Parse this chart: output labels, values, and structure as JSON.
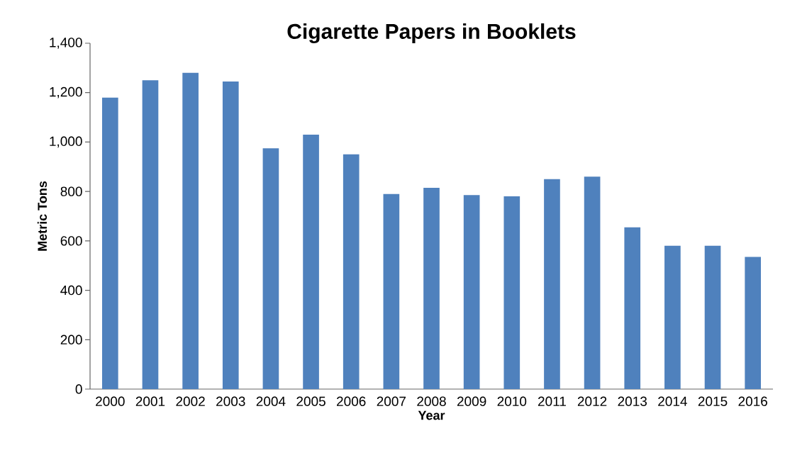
{
  "chart_data": {
    "type": "bar",
    "title": "Cigarette Papers in Booklets",
    "xlabel": "Year",
    "ylabel": "Metric Tons",
    "categories": [
      "2000",
      "2001",
      "2002",
      "2003",
      "2004",
      "2005",
      "2006",
      "2007",
      "2008",
      "2009",
      "2010",
      "2011",
      "2012",
      "2013",
      "2014",
      "2015",
      "2016"
    ],
    "values": [
      1180,
      1250,
      1280,
      1245,
      975,
      1030,
      950,
      790,
      815,
      785,
      780,
      850,
      860,
      655,
      580,
      580,
      535
    ],
    "color": "#4f81bd",
    "ylim": [
      0,
      1400
    ],
    "yticks": [
      {
        "value": 0,
        "label": "0"
      },
      {
        "value": 200,
        "label": "200"
      },
      {
        "value": 400,
        "label": "400"
      },
      {
        "value": 600,
        "label": "600"
      },
      {
        "value": 800,
        "label": "800"
      },
      {
        "value": 1000,
        "label": "1,000"
      },
      {
        "value": 1200,
        "label": "1,200"
      },
      {
        "value": 1400,
        "label": "1,400"
      }
    ],
    "grid": false,
    "legend": false
  }
}
